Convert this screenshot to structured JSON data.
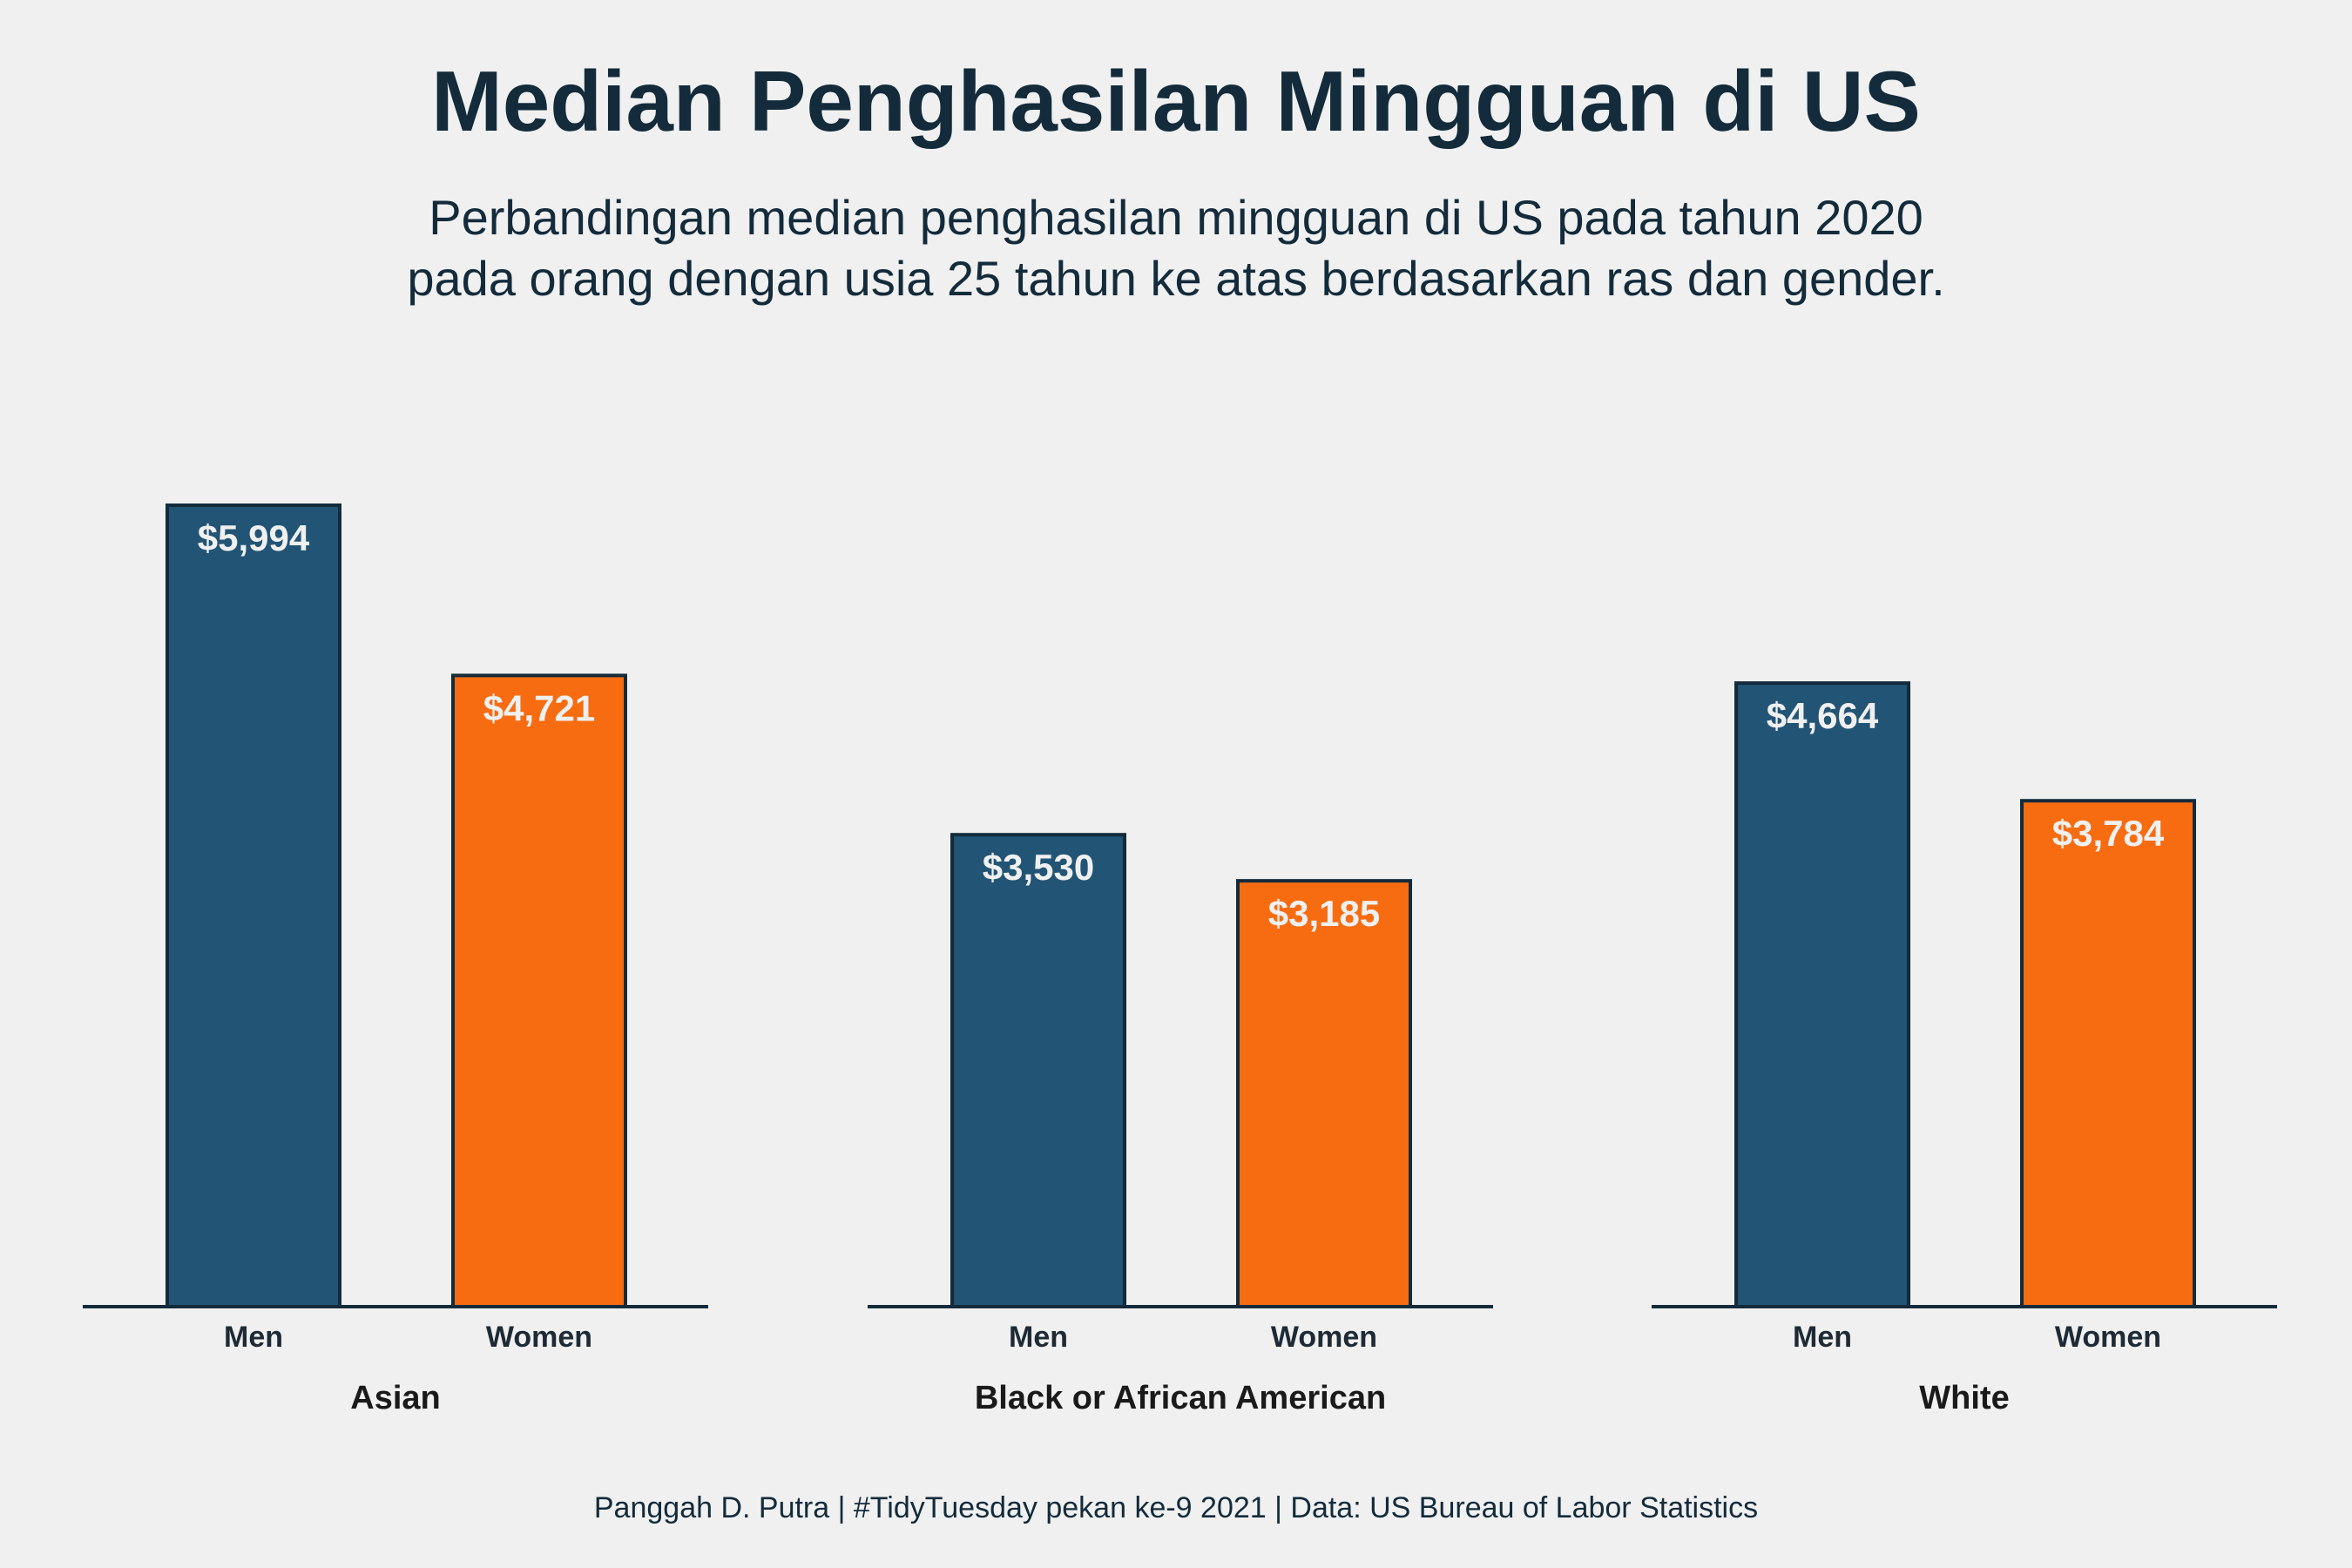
{
  "title": "Median Penghasilan Mingguan di US",
  "subtitle": [
    "Perbandingan median penghasilan mingguan di US pada tahun 2020",
    "pada orang dengan usia 25 tahun ke atas berdasarkan ras dan gender."
  ],
  "caption": "Panggah D. Putra | #TidyTuesday pekan ke-9 2021 | Data: US Bureau of Labor Statistics",
  "colors": {
    "background": "#f0f0f0",
    "men": "#225475",
    "women": "#f76c11",
    "outline": "#132b3b",
    "text_dark": "#132b3b",
    "label_light": "#f0f0f0"
  },
  "chart_data": {
    "type": "bar",
    "facet_by": "race",
    "categories": [
      "Men",
      "Women"
    ],
    "ylim": [
      0,
      5994
    ],
    "grid": false,
    "legend": "none",
    "panels": [
      {
        "name": "Asian",
        "values": [
          5994,
          4721
        ],
        "labels": [
          "$5,994",
          "$4,721"
        ]
      },
      {
        "name": "Black or African American",
        "values": [
          3530,
          3185
        ],
        "labels": [
          "$3,530",
          "$3,185"
        ]
      },
      {
        "name": "White",
        "values": [
          4664,
          3784
        ],
        "labels": [
          "$4,664",
          "$3,784"
        ]
      }
    ]
  }
}
